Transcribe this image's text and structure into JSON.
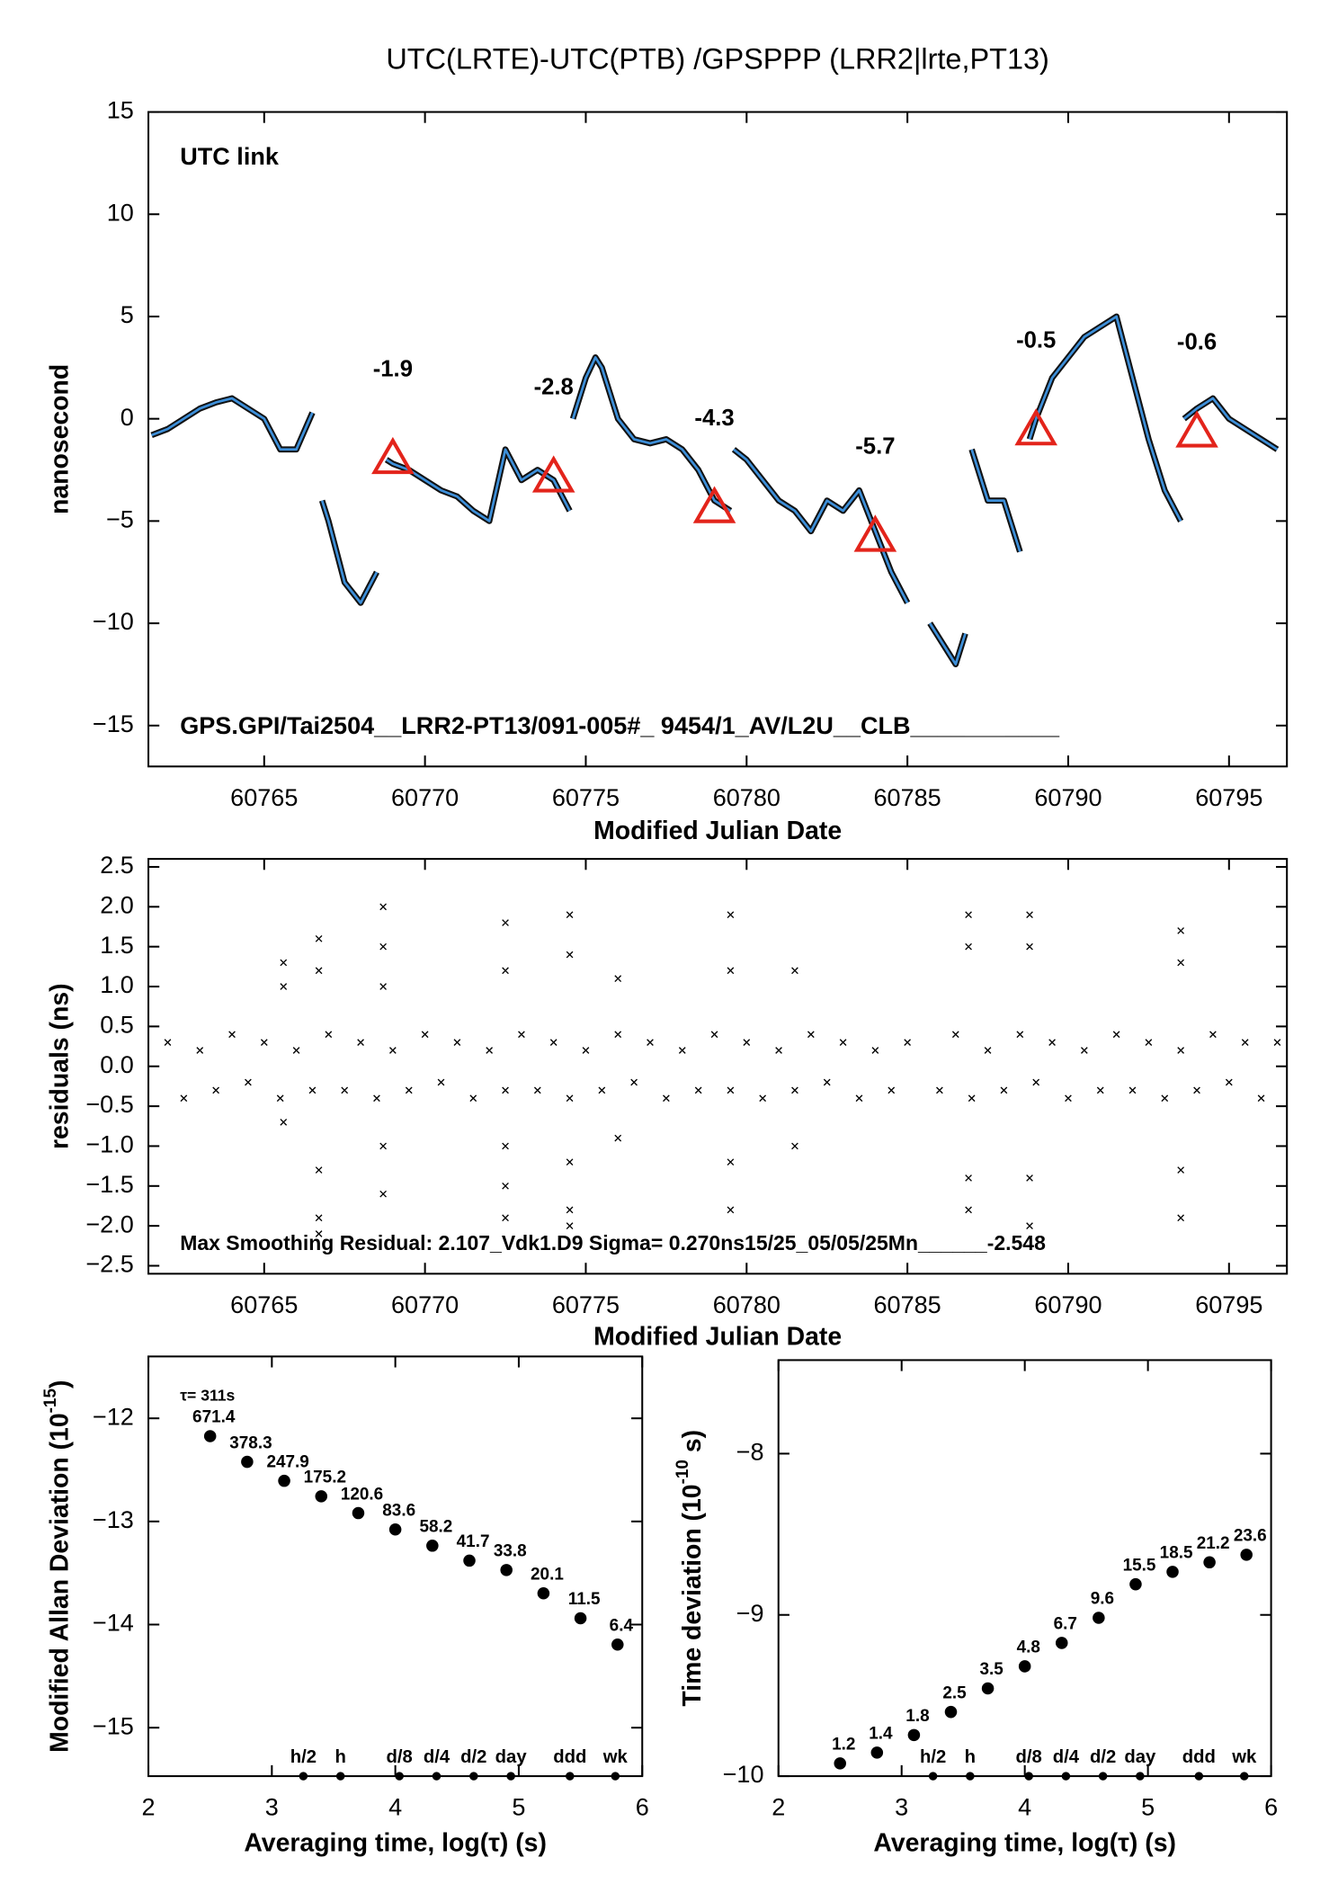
{
  "chart_data": [
    {
      "type": "line",
      "title": "UTC(LRTE)-UTC(PTB)  /GPSPPP  (LRR2|lrte,PT13)",
      "xlabel": "Modified Julian Date",
      "ylabel": "nanosecond",
      "annotation": "UTC link",
      "annotation_color": "#6b8e23",
      "footer": "GPS.GPI/Tai2504__LRR2-PT13/091-005#_  9454/1_AV/L2U__CLB___________",
      "xlim": [
        60761.4,
        60796.8
      ],
      "ylim": [
        -17,
        15
      ],
      "xticks": [
        60765,
        60770,
        60775,
        60780,
        60785,
        60790,
        60795
      ],
      "yticks": [
        {
          "value": -15,
          "label": "−15"
        },
        {
          "value": -10,
          "label": "−10"
        },
        {
          "value": -5,
          "label": "−5"
        },
        0,
        5,
        10,
        15
      ],
      "series": [
        {
          "color": "#3d8fd9",
          "x": [
            60761.5,
            60762,
            60762.5,
            60763,
            60763.5,
            60764,
            60764.5,
            60765,
            60765.5,
            60766,
            60766.5,
            60766.7,
            60766.8,
            60767,
            60767.5,
            60768,
            60768.5,
            60768.7,
            60768.8,
            60769,
            60769.5,
            60770,
            60770.5,
            60771,
            60771.5,
            60772,
            60772.5,
            60773,
            60773.5,
            60774,
            60774.5,
            60774.55,
            60774.6,
            60775,
            60775.3,
            60775.5,
            60776,
            60776.5,
            60777,
            60777.5,
            60778,
            60778.5,
            60779,
            60779.5,
            60779.55,
            60779.6,
            60780,
            60780.5,
            60781,
            60781.5,
            60782,
            60782.5,
            60783,
            60783.5,
            60784,
            60784.5,
            60785,
            60785.3,
            60785.7,
            60786.5,
            60786.8,
            60786.9,
            60787,
            60787.5,
            60788,
            60788.5,
            60788.7,
            60788.8,
            60789,
            60789.5,
            60790,
            60790.5,
            60791,
            60791.5,
            60792,
            60792.5,
            60793,
            60793.5,
            60793.55,
            60793.6,
            60794,
            60794.5,
            60795,
            60795.5,
            60796,
            60796.5
          ],
          "values": [
            -0.8,
            -0.5,
            0,
            0.5,
            0.8,
            1.0,
            0.5,
            0,
            -1.5,
            -1.5,
            0.3,
            null,
            -4,
            -5,
            -8,
            -9,
            -7.5,
            null,
            -2,
            -2.2,
            -2.5,
            -3,
            -3.5,
            -3.8,
            -4.5,
            -5,
            -1.5,
            -3,
            -2.5,
            -3,
            -4.5,
            null,
            0,
            2,
            3,
            2.5,
            0,
            -1,
            -1.2,
            -1,
            -1.5,
            -2.5,
            -4,
            -4.5,
            null,
            -1.5,
            -2,
            -3,
            -4,
            -4.5,
            -5.5,
            -4,
            -4.5,
            -3.5,
            -5.5,
            -7.5,
            -9,
            null,
            -10,
            -12,
            -10.5,
            null,
            -1.5,
            -4,
            -4,
            -6.5,
            null,
            -1,
            0,
            2,
            3,
            4,
            4.5,
            5,
            2,
            -1,
            -3.5,
            -5,
            null,
            0,
            0.5,
            1,
            0,
            -0.5,
            -1,
            -1.5
          ]
        }
      ],
      "markers": {
        "color": "#e3241b",
        "x": [
          60769,
          60774,
          60779,
          60784,
          60789,
          60794
        ],
        "values": [
          -1.9,
          -2.8,
          -4.3,
          -5.7,
          -0.5,
          -0.6
        ]
      }
    },
    {
      "type": "scatter",
      "xlabel": "Modified Julian Date",
      "ylabel": "residuals (ns)",
      "annotation": "Max Smoothing Residual: 2.107_Vdk1.D9  Sigma= 0.270ns15/25_05/05/25Mn______-2.548",
      "xlim": [
        60761.4,
        60796.8
      ],
      "ylim": [
        -2.6,
        2.6
      ],
      "xticks": [
        60765,
        60770,
        60775,
        60780,
        60785,
        60790,
        60795
      ],
      "yticks": [
        {
          "value": -2.5,
          "label": "−2.5"
        },
        {
          "value": -2,
          "label": "−2.0"
        },
        {
          "value": -1.5,
          "label": "−1.5"
        },
        {
          "value": -1,
          "label": "−1.0"
        },
        {
          "value": -0.5,
          "label": "−0.5"
        },
        {
          "value": 0,
          "label": "0.0"
        },
        0.5,
        {
          "value": 1,
          "label": "1.0"
        },
        1.5,
        {
          "value": 2,
          "label": "2.0"
        },
        2.5
      ],
      "color": "#000000",
      "x": [
        60762,
        60762.5,
        60763,
        60763.5,
        60764,
        60764.5,
        60765,
        60765.5,
        60766,
        60766.5,
        60767,
        60767.5,
        60768,
        60768.5,
        60769,
        60769.5,
        60770,
        60770.5,
        60771,
        60771.5,
        60772,
        60772.5,
        60773,
        60773.5,
        60774,
        60774.5,
        60775,
        60775.5,
        60776,
        60776.5,
        60777,
        60777.5,
        60778,
        60778.5,
        60779,
        60779.5,
        60780,
        60780.5,
        60781,
        60781.5,
        60782,
        60782.5,
        60783,
        60783.5,
        60784,
        60784.5,
        60785,
        60786,
        60786.5,
        60787,
        60787.5,
        60788,
        60788.5,
        60789,
        60789.5,
        60790,
        60790.5,
        60791,
        60791.5,
        60792,
        60792.5,
        60793,
        60793.5,
        60794,
        60794.5,
        60795,
        60795.5,
        60796,
        60796.5,
        60765.6,
        60765.6,
        60765.6,
        60766.7,
        60766.7,
        60766.7,
        60766.7,
        60766.7,
        60768.7,
        60768.7,
        60768.7,
        60768.7,
        60768.7,
        60772.5,
        60772.5,
        60772.5,
        60772.5,
        60772.5,
        60774.5,
        60774.5,
        60774.5,
        60774.5,
        60774.5,
        60776,
        60776,
        60779.5,
        60779.5,
        60779.5,
        60779.5,
        60781.5,
        60781.5,
        60786.9,
        60786.9,
        60786.9,
        60786.9,
        60788.8,
        60788.8,
        60788.8,
        60788.8,
        60793.5,
        60793.5,
        60793.5,
        60793.5
      ],
      "values": [
        0.3,
        -0.4,
        0.2,
        -0.3,
        0.4,
        -0.2,
        0.3,
        -0.4,
        0.2,
        -0.3,
        0.4,
        -0.3,
        0.3,
        -0.4,
        0.2,
        -0.3,
        0.4,
        -0.2,
        0.3,
        -0.4,
        0.2,
        -0.3,
        0.4,
        -0.3,
        0.3,
        -0.4,
        0.2,
        -0.3,
        0.4,
        -0.2,
        0.3,
        -0.4,
        0.2,
        -0.3,
        0.4,
        -0.3,
        0.3,
        -0.4,
        0.2,
        -0.3,
        0.4,
        -0.2,
        0.3,
        -0.4,
        0.2,
        -0.3,
        0.3,
        -0.3,
        0.4,
        -0.4,
        0.2,
        -0.3,
        0.4,
        -0.2,
        0.3,
        -0.4,
        0.2,
        -0.3,
        0.4,
        -0.3,
        0.3,
        -0.4,
        0.2,
        -0.3,
        0.4,
        -0.2,
        0.3,
        -0.4,
        0.3,
        1.3,
        1.0,
        -0.7,
        1.6,
        1.2,
        -1.3,
        -1.9,
        -2.1,
        2.0,
        1.5,
        1.0,
        -1.0,
        -1.6,
        1.8,
        1.2,
        -1.0,
        -1.5,
        -1.9,
        1.9,
        1.4,
        -1.2,
        -1.8,
        -2.0,
        1.1,
        -0.9,
        1.9,
        1.2,
        -1.2,
        -1.8,
        1.2,
        -1.0,
        1.9,
        1.5,
        -1.4,
        -1.8,
        1.9,
        1.5,
        -1.4,
        -2.0,
        1.7,
        1.3,
        -1.3,
        -1.9
      ]
    },
    {
      "type": "scatter",
      "xlabel": "Averaging time, log(τ) (s)",
      "ylabel": "Modified Allan Deviation (10",
      "ylabel_exp": "-15",
      "ylabel_end": ")",
      "annotation": "τ= 311s",
      "xlim": [
        2,
        6
      ],
      "ylim": [
        -15.47,
        -11.4
      ],
      "xticks": [
        2,
        3,
        4,
        5,
        6
      ],
      "yticks": [
        {
          "value": -15,
          "label": "−15"
        },
        {
          "value": -14,
          "label": "−14"
        },
        {
          "value": -13,
          "label": "−13"
        },
        {
          "value": -12,
          "label": "−12"
        }
      ],
      "color": "#000000",
      "label_color": "#e3241b",
      "x": [
        2.5,
        2.8,
        3.1,
        3.4,
        3.7,
        4.0,
        4.3,
        4.6,
        4.9,
        5.2,
        5.5,
        5.8
      ],
      "values": [
        -12.173,
        -12.422,
        -12.606,
        -12.756,
        -12.919,
        -13.078,
        -13.235,
        -13.38,
        -13.471,
        -13.697,
        -13.939,
        -14.194
      ],
      "value_labels": [
        "671.4",
        "378.3",
        "247.9",
        "175.2",
        "120.6",
        "83.6",
        "58.2",
        "41.7",
        "33.8",
        "20.1",
        "11.5",
        "6.4"
      ],
      "time_marks": {
        "x": [
          3.255,
          3.556,
          4.033,
          4.334,
          4.635,
          4.936,
          5.414,
          5.782
        ],
        "labels": [
          "h/2",
          "h",
          "d/8",
          "d/4",
          "d/2",
          "day",
          "ddd",
          "wk"
        ]
      }
    },
    {
      "type": "scatter",
      "xlabel": "Averaging time, log(τ) (s)",
      "ylabel": "Time deviation (10",
      "ylabel_exp": "-10",
      "ylabel_end": " s)",
      "xlim": [
        2,
        6
      ],
      "ylim": [
        -10,
        -7.42
      ],
      "xticks": [
        2,
        3,
        4,
        5,
        6
      ],
      "yticks": [
        {
          "value": -10,
          "label": "−10"
        },
        {
          "value": -9,
          "label": "−9"
        },
        {
          "value": -8,
          "label": "−8"
        }
      ],
      "color": "#000000",
      "label_color": "#e3241b",
      "x": [
        2.5,
        2.8,
        3.1,
        3.4,
        3.7,
        4.0,
        4.3,
        4.6,
        4.9,
        5.2,
        5.5,
        5.8
      ],
      "values": [
        -9.921,
        -9.854,
        -9.745,
        -9.602,
        -9.456,
        -9.319,
        -9.174,
        -9.018,
        -8.81,
        -8.733,
        -8.674,
        -8.627
      ],
      "value_labels": [
        "1.2",
        "1.4",
        "1.8",
        "2.5",
        "3.5",
        "4.8",
        "6.7",
        "9.6",
        "15.5",
        "18.5",
        "21.2",
        "23.6"
      ],
      "time_marks": {
        "x": [
          3.255,
          3.556,
          4.033,
          4.334,
          4.635,
          4.936,
          5.414,
          5.782
        ],
        "labels": [
          "h/2",
          "h",
          "d/8",
          "d/4",
          "d/2",
          "day",
          "ddd",
          "wk"
        ]
      }
    }
  ]
}
